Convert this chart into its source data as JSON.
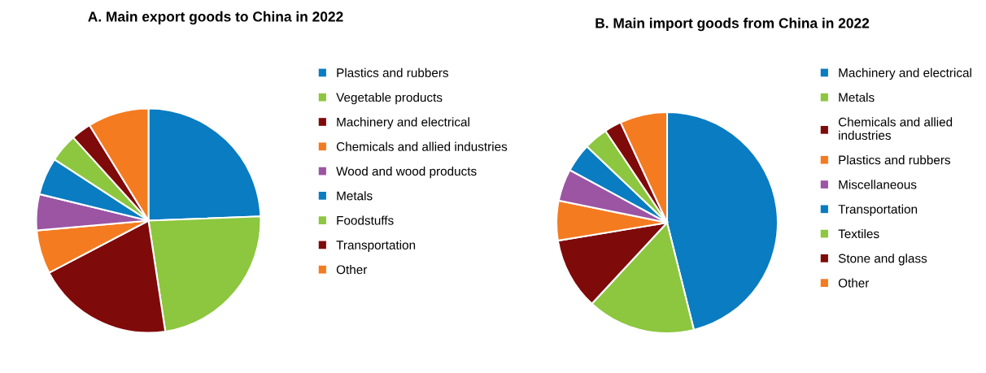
{
  "chart_data": [
    {
      "type": "pie",
      "title": "A. Main export goods to China in 2022",
      "categories": [
        "Plastics and rubbers",
        "Vegetable products",
        "Machinery and electrical",
        "Chemicals and allied industries",
        "Wood and wood products",
        "Metals",
        "Foodstuffs",
        "Transportation",
        "Other"
      ],
      "values": [
        24.4,
        23.2,
        19.7,
        6.3,
        5.2,
        5.4,
        4.1,
        2.9,
        8.8
      ],
      "colors": [
        "#0a7cc1",
        "#8dc63f",
        "#7f0a0a",
        "#f47b20",
        "#9b55a3",
        "#0a7cc1",
        "#8dc63f",
        "#7f0a0a",
        "#f47b20"
      ],
      "legend": "right"
    },
    {
      "type": "pie",
      "title": "B. Main import goods from China in 2022",
      "categories": [
        "Machinery and electrical",
        "Metals",
        "Chemicals and allied industries",
        "Plastics and rubbers",
        "Miscellaneous",
        "Transportation",
        "Textiles",
        "Stone and glass",
        "Other"
      ],
      "values": [
        46.1,
        15.8,
        10.5,
        5.8,
        4.7,
        4.2,
        3.5,
        2.5,
        6.9
      ],
      "colors": [
        "#0a7cc1",
        "#8dc63f",
        "#7f0a0a",
        "#f47b20",
        "#9b55a3",
        "#0a7cc1",
        "#8dc63f",
        "#7f0a0a",
        "#f47b20"
      ],
      "legend": "right"
    }
  ]
}
